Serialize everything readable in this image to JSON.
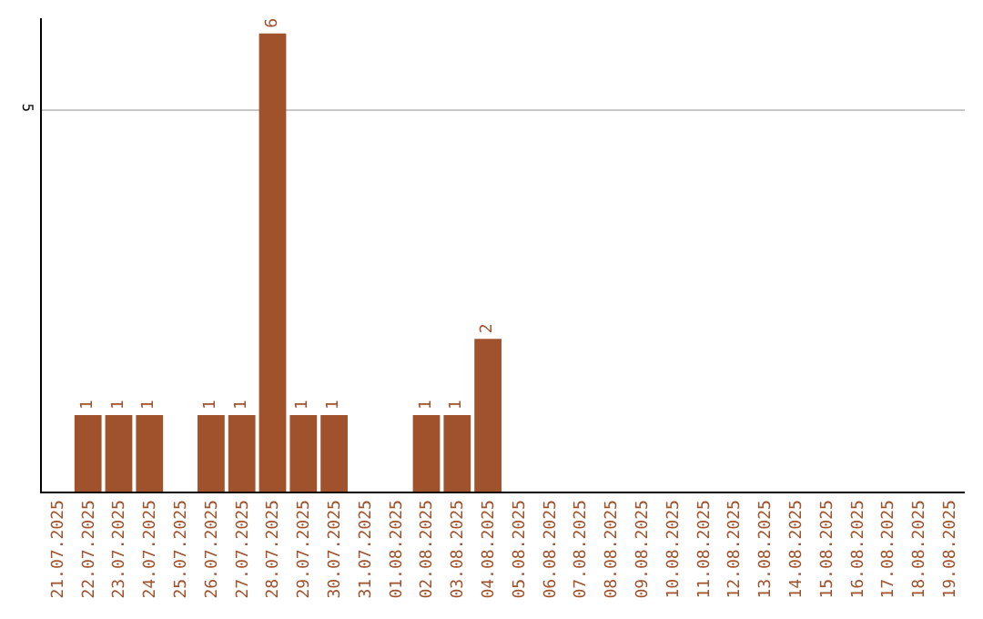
{
  "chart_data": {
    "type": "bar",
    "categories": [
      "21.07.2025",
      "22.07.2025",
      "23.07.2025",
      "24.07.2025",
      "25.07.2025",
      "26.07.2025",
      "27.07.2025",
      "28.07.2025",
      "29.07.2025",
      "30.07.2025",
      "31.07.2025",
      "01.08.2025",
      "02.08.2025",
      "03.08.2025",
      "04.08.2025",
      "05.08.2025",
      "06.08.2025",
      "07.08.2025",
      "08.08.2025",
      "09.08.2025",
      "10.08.2025",
      "11.08.2025",
      "12.08.2025",
      "13.08.2025",
      "14.08.2025",
      "15.08.2025",
      "16.08.2025",
      "17.08.2025",
      "18.08.2025",
      "19.08.2025"
    ],
    "values": [
      0,
      1,
      1,
      1,
      0,
      1,
      1,
      6,
      1,
      1,
      0,
      0,
      1,
      1,
      2,
      0,
      0,
      0,
      0,
      0,
      0,
      0,
      0,
      0,
      0,
      0,
      0,
      0,
      0,
      0
    ],
    "value_labels": [
      null,
      "1",
      "1",
      "1",
      null,
      "1",
      "1",
      "6",
      "1",
      "1",
      null,
      null,
      "1",
      "1",
      "2",
      null,
      null,
      null,
      null,
      null,
      null,
      null,
      null,
      null,
      null,
      null,
      null,
      null,
      null,
      null
    ],
    "color": "#a0522d",
    "ylim": [
      0,
      6.2
    ],
    "yticks": [
      5
    ],
    "grid": "y",
    "legend": false
  }
}
